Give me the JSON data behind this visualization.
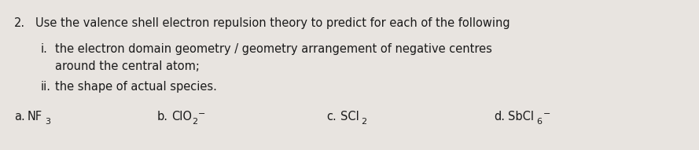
{
  "background_color": "#e8e4e0",
  "text_color": "#1a1a1a",
  "line1_number": "2.",
  "line1_text": "Use the valence shell electron repulsion theory to predict for each of the following",
  "line2_label": "i.",
  "line2_text": "the electron domain geometry / geometry arrangement of negative centres",
  "line3_text": "around the central atom;",
  "line4_label": "ii.",
  "line4_text": "the shape of actual species.",
  "item_a_label": "a.",
  "item_a_main": "NF",
  "item_a_sub": "3",
  "item_b_label": "b.",
  "item_b_main": "ClO",
  "item_b_sub": "2",
  "item_b_sup": "−",
  "item_c_label": "c.",
  "item_c_main": "SCl",
  "item_c_sub": "2",
  "item_d_label": "d.",
  "item_d_main": "SbCl",
  "item_d_sub": "6",
  "item_d_sup": "−",
  "font_size_main": 10.5,
  "font_size_small": 8.0,
  "figwidth": 8.89,
  "figheight": 1.91,
  "dpi": 100
}
